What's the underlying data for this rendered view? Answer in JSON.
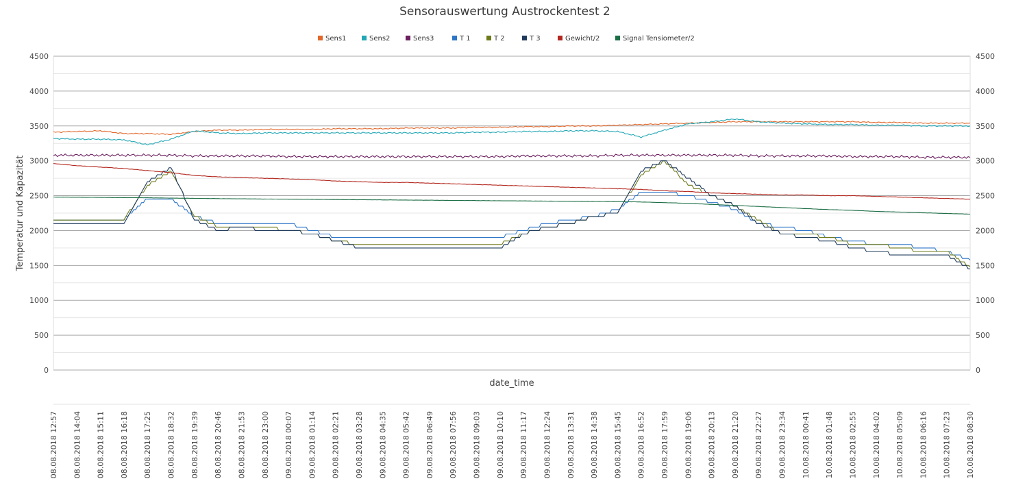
{
  "chart_data": {
    "type": "line",
    "title": "Sensorauswertung Austrockentest 2",
    "xlabel": "date_time",
    "ylabel": "Temperatur und Kapazität",
    "ylim": [
      0,
      4500
    ],
    "yticks": [
      0,
      500,
      1000,
      1500,
      2000,
      2500,
      3000,
      3500,
      4000,
      4500
    ],
    "grid": true,
    "legend_position": "top",
    "categories": [
      "08.08.2018  12:57",
      "08.08.2018  14:04",
      "08.08.2018  15:11",
      "08.08.2018  16:18",
      "08.08.2018  17:25",
      "08.08.2018  18:32",
      "08.08.2018  19:39",
      "08.08.2018  20:46",
      "08.08.2018  21:53",
      "08.08.2018  23:00",
      "09.08.2018  00:07",
      "09.08.2018  01:14",
      "09.08.2018  02:21",
      "09.08.2018  03:28",
      "09.08.2018  04:35",
      "09.08.2018  05:42",
      "09.08.2018  06:49",
      "09.08.2018  07:56",
      "09.08.2018  09:03",
      "09.08.2018  10:10",
      "09.08.2018  11:17",
      "09.08.2018  12:24",
      "09.08.2018  13:31",
      "09.08.2018  14:38",
      "09.08.2018  15:45",
      "09.08.2018  16:52",
      "09.08.2018  17:59",
      "09.08.2018  19:06",
      "09.08.2018  20:13",
      "09.08.2018  21:20",
      "09.08.2018  22:27",
      "09.08.2018  23:34",
      "10.08.2018  00:41",
      "10.08.2018  01:48",
      "10.08.2018  02:55",
      "10.08.2018  04:02",
      "10.08.2018  05:09",
      "10.08.2018  06:16",
      "10.08.2018  07:23",
      "10.08.2018  08:30"
    ],
    "series": [
      {
        "name": "Sens1",
        "color": "#E2672A",
        "values": [
          3410,
          3420,
          3430,
          3390,
          3390,
          3380,
          3420,
          3440,
          3440,
          3450,
          3450,
          3450,
          3460,
          3460,
          3460,
          3470,
          3470,
          3470,
          3480,
          3480,
          3490,
          3490,
          3500,
          3500,
          3510,
          3520,
          3530,
          3540,
          3550,
          3560,
          3560,
          3560,
          3560,
          3560,
          3560,
          3550,
          3550,
          3540,
          3540,
          3540
        ]
      },
      {
        "name": "Sens2",
        "color": "#22A7B5",
        "values": [
          3320,
          3310,
          3310,
          3300,
          3230,
          3310,
          3430,
          3400,
          3390,
          3400,
          3400,
          3400,
          3400,
          3400,
          3400,
          3400,
          3400,
          3400,
          3410,
          3410,
          3420,
          3420,
          3430,
          3430,
          3420,
          3340,
          3440,
          3530,
          3560,
          3600,
          3560,
          3540,
          3530,
          3520,
          3520,
          3510,
          3510,
          3500,
          3500,
          3500
        ]
      },
      {
        "name": "Sens3",
        "color": "#6B1F5F",
        "values": [
          3080,
          3080,
          3080,
          3080,
          3080,
          3080,
          3070,
          3070,
          3070,
          3070,
          3060,
          3060,
          3060,
          3060,
          3060,
          3060,
          3060,
          3060,
          3060,
          3060,
          3070,
          3070,
          3070,
          3070,
          3080,
          3080,
          3080,
          3080,
          3080,
          3080,
          3070,
          3070,
          3070,
          3070,
          3060,
          3060,
          3060,
          3050,
          3050,
          3050
        ]
      },
      {
        "name": "T 1",
        "color": "#2E75C7",
        "values": [
          2150,
          2150,
          2150,
          2150,
          2450,
          2450,
          2200,
          2100,
          2100,
          2100,
          2100,
          2000,
          1900,
          1900,
          1900,
          1900,
          1900,
          1900,
          1900,
          1900,
          2000,
          2100,
          2150,
          2200,
          2300,
          2550,
          2550,
          2500,
          2400,
          2300,
          2100,
          2050,
          2000,
          1900,
          1850,
          1800,
          1800,
          1750,
          1700,
          1580
        ]
      },
      {
        "name": "T 2",
        "color": "#6E7A1A",
        "values": [
          2150,
          2150,
          2150,
          2150,
          2650,
          2850,
          2200,
          2050,
          2050,
          2050,
          2000,
          1950,
          1850,
          1800,
          1800,
          1800,
          1800,
          1800,
          1800,
          1800,
          1950,
          2050,
          2100,
          2200,
          2250,
          2800,
          3000,
          2650,
          2500,
          2350,
          2150,
          1950,
          1950,
          1900,
          1800,
          1800,
          1750,
          1700,
          1700,
          1480
        ]
      },
      {
        "name": "T 3",
        "color": "#1F3B5C",
        "values": [
          2100,
          2100,
          2100,
          2100,
          2700,
          2900,
          2150,
          2000,
          2050,
          2000,
          2000,
          1950,
          1850,
          1750,
          1750,
          1750,
          1750,
          1750,
          1750,
          1750,
          1950,
          2050,
          2100,
          2200,
          2250,
          2850,
          3000,
          2750,
          2500,
          2350,
          2100,
          1950,
          1900,
          1850,
          1750,
          1700,
          1650,
          1650,
          1650,
          1450
        ]
      },
      {
        "name": "Gewicht/2",
        "color": "#B3271E",
        "values": [
          2960,
          2930,
          2910,
          2890,
          2860,
          2830,
          2790,
          2770,
          2760,
          2750,
          2740,
          2730,
          2710,
          2700,
          2690,
          2690,
          2680,
          2670,
          2660,
          2650,
          2640,
          2630,
          2620,
          2610,
          2600,
          2590,
          2570,
          2560,
          2540,
          2530,
          2520,
          2510,
          2510,
          2500,
          2500,
          2490,
          2480,
          2470,
          2460,
          2450
        ]
      },
      {
        "name": "Signal Tensiometer/2",
        "color": "#1C6E45",
        "values": [
          2480,
          2478,
          2475,
          2472,
          2470,
          2465,
          2462,
          2458,
          2455,
          2452,
          2450,
          2447,
          2445,
          2442,
          2440,
          2437,
          2435,
          2432,
          2430,
          2427,
          2425,
          2422,
          2420,
          2418,
          2415,
          2410,
          2400,
          2390,
          2375,
          2360,
          2345,
          2330,
          2315,
          2300,
          2290,
          2275,
          2265,
          2255,
          2245,
          2235
        ]
      }
    ]
  }
}
